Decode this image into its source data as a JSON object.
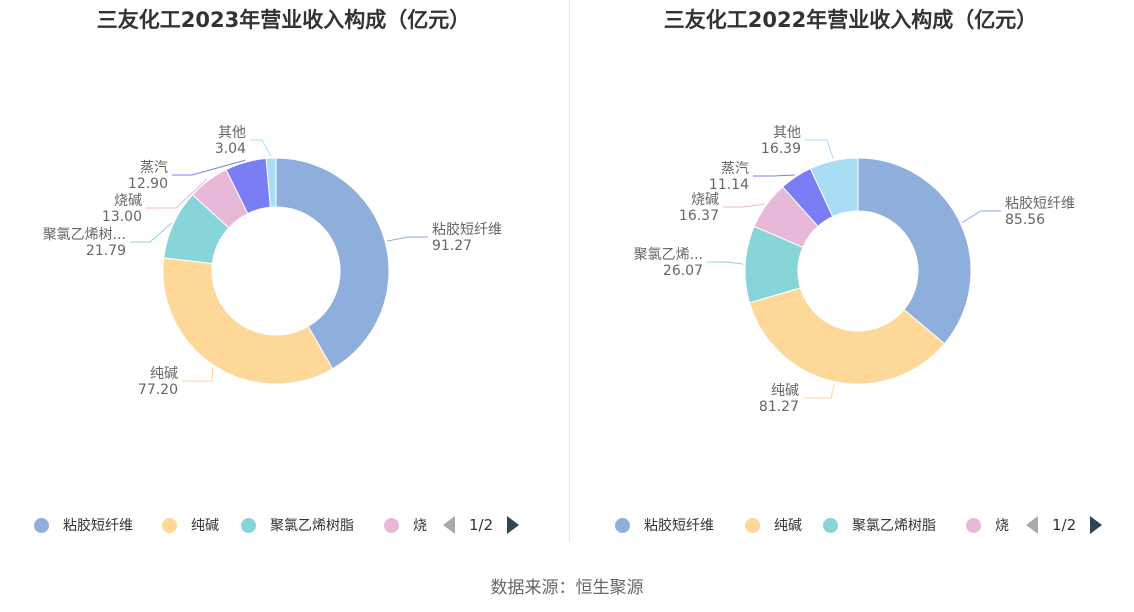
{
  "source": "数据来源：恒生聚源",
  "legend_pager": "1/2",
  "colors": [
    "#8eaedb",
    "#fdd899",
    "#88d5d9",
    "#e8b8d9",
    "#7b7df5",
    "#a9ddf6"
  ],
  "chart_data": [
    {
      "type": "pie",
      "title": "三友化工2023年营业收入构成（亿元）",
      "categories": [
        "粘胶短纤维",
        "纯碱",
        "聚氯乙烯树脂",
        "烧碱",
        "蒸汽",
        "其他"
      ],
      "labels": [
        "粘胶短纤维",
        "纯碱",
        "聚氯乙烯树...",
        "烧碱",
        "蒸汽",
        "其他"
      ],
      "values": [
        91.27,
        77.2,
        21.79,
        13.0,
        12.9,
        3.04
      ],
      "value_labels": [
        "91.27",
        "77.20",
        "21.79",
        "13.00",
        "12.90",
        "3.04"
      ],
      "legend": [
        "粘胶短纤维",
        "纯碱",
        "聚氯乙烯树脂",
        "烧"
      ],
      "donut": true
    },
    {
      "type": "pie",
      "title": "三友化工2022年营业收入构成（亿元）",
      "categories": [
        "粘胶短纤维",
        "纯碱",
        "聚氯乙烯树脂",
        "烧碱",
        "蒸汽",
        "其他"
      ],
      "labels": [
        "粘胶短纤维",
        "纯碱",
        "聚氯乙烯...",
        "烧碱",
        "蒸汽",
        "其他"
      ],
      "values": [
        85.56,
        81.27,
        26.07,
        16.37,
        11.14,
        16.39
      ],
      "value_labels": [
        "85.56",
        "81.27",
        "26.07",
        "16.37",
        "11.14",
        "16.39"
      ],
      "legend": [
        "粘胶短纤维",
        "纯碱",
        "聚氯乙烯树脂",
        "烧"
      ],
      "donut": true
    }
  ]
}
